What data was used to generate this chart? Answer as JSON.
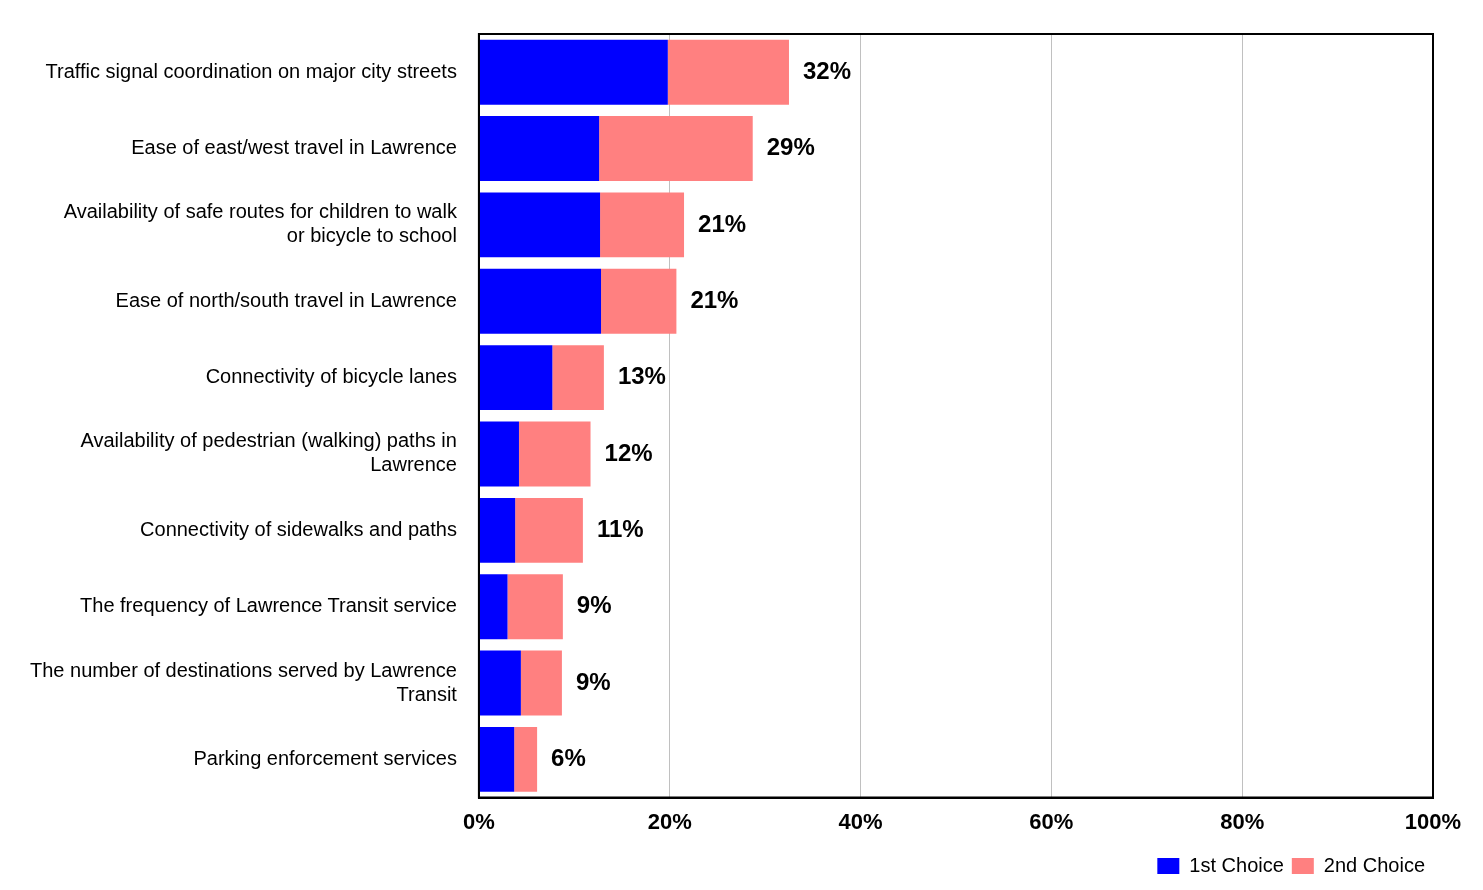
{
  "chart_data": {
    "type": "bar",
    "orientation": "horizontal",
    "stacked": true,
    "categories": [
      "Traffic signal coordination on major city streets",
      "Ease of east/west travel in Lawrence",
      "Availability of safe routes for children to walk or bicycle to school",
      "Ease of north/south travel in Lawrence",
      "Connectivity of bicycle lanes",
      "Availability of pedestrian (walking) paths in Lawrence",
      "Connectivity of sidewalks and paths",
      "The frequency of Lawrence Transit service",
      "The number of destinations served by Lawrence Transit",
      "Parking enforcement services"
    ],
    "series": [
      {
        "name": "1st Choice",
        "color": "#0000ff",
        "values": [
          19.8,
          12.6,
          12.7,
          12.8,
          7.7,
          4.2,
          3.8,
          3.0,
          4.4,
          3.7
        ]
      },
      {
        "name": "2nd Choice",
        "color": "#ff8080",
        "values": [
          12.7,
          16.1,
          8.8,
          7.9,
          5.4,
          7.5,
          7.1,
          5.8,
          4.3,
          2.4
        ]
      }
    ],
    "totals": [
      "32%",
      "29%",
      "21%",
      "21%",
      "13%",
      "12%",
      "11%",
      "9%",
      "9%",
      "6%"
    ],
    "xlim": [
      0,
      100
    ],
    "xticks": [
      {
        "value": 0,
        "label": "0%"
      },
      {
        "value": 20,
        "label": "20%"
      },
      {
        "value": 40,
        "label": "40%"
      },
      {
        "value": 60,
        "label": "60%"
      },
      {
        "value": 80,
        "label": "80%"
      },
      {
        "value": 100,
        "label": "100%"
      }
    ],
    "grid": "x",
    "legend": "bottom right"
  }
}
